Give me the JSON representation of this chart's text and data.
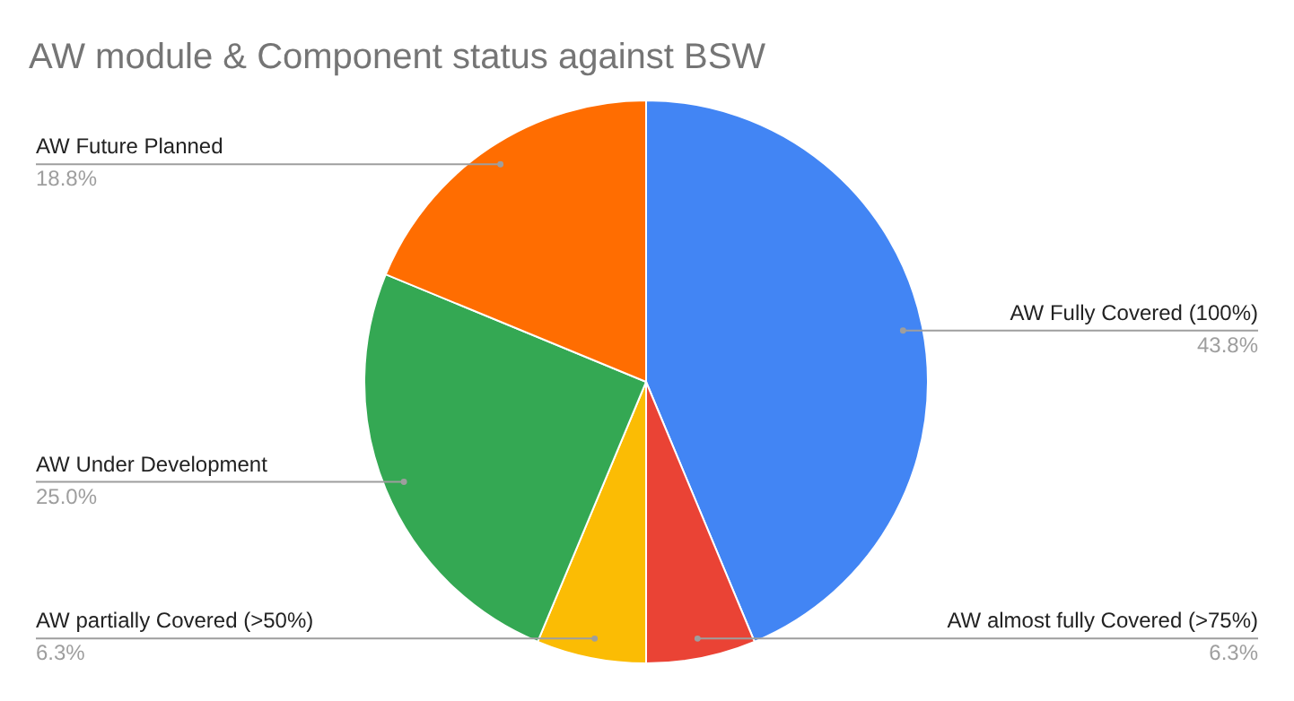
{
  "chart_data": {
    "type": "pie",
    "title": "AW module & Component status against BSW",
    "categories": [
      "AW Fully Covered (100%)",
      "AW almost fully Covered (>75%)",
      "AW partially Covered (>50%)",
      "AW Under Development",
      "AW Future Planned"
    ],
    "values": [
      43.8,
      6.3,
      6.3,
      25.0,
      18.8
    ],
    "colors": [
      "#4285f4",
      "#ea4335",
      "#fbbc04",
      "#34a853",
      "#ff6d01"
    ],
    "value_labels": [
      "43.8%",
      "6.3%",
      "6.3%",
      "25.0%",
      "18.8%"
    ]
  }
}
